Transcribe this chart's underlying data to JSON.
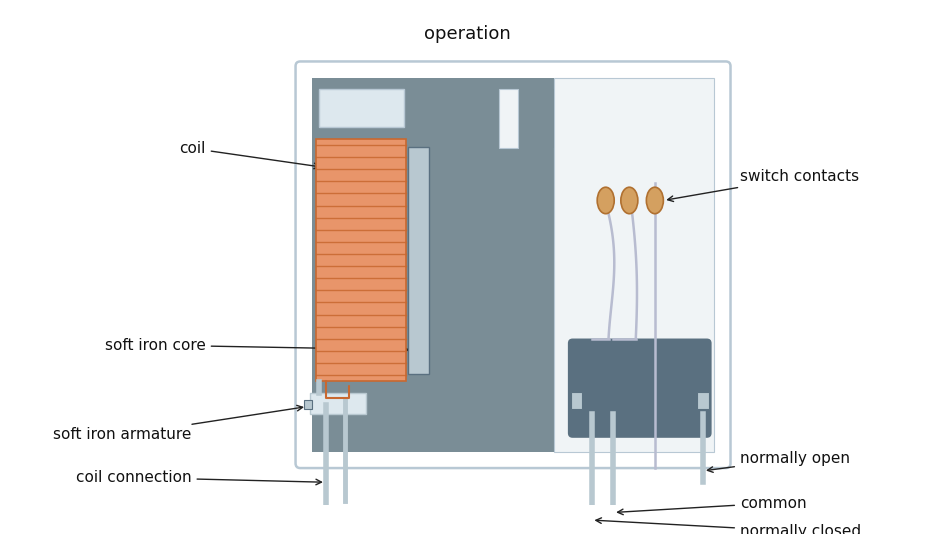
{
  "title": "operation",
  "bg_color": "#ffffff",
  "gray_main": "#7a8d96",
  "gray_medium": "#8fa0aa",
  "gray_light": "#b8c8d0",
  "gray_dark": "#5a7080",
  "coil_color": "#e8956a",
  "coil_line_color": "#c86830",
  "contact_color": "#d4a060",
  "contact_edge": "#b07030",
  "wire_color": "#b8bcd0",
  "wire_dark": "#9098b0",
  "light_panel": "#dde8ee",
  "box_border": "#b8c8d4",
  "labels": {
    "coil": "coil",
    "soft_iron_core": "soft iron core",
    "coil_connection": "coil connection",
    "soft_iron_armature": "soft iron armature",
    "switch_contacts": "switch contacts",
    "normally_open": "normally open",
    "common": "common",
    "normally_closed": "normally closed"
  },
  "font_size": 11,
  "arrow_color": "#222222"
}
